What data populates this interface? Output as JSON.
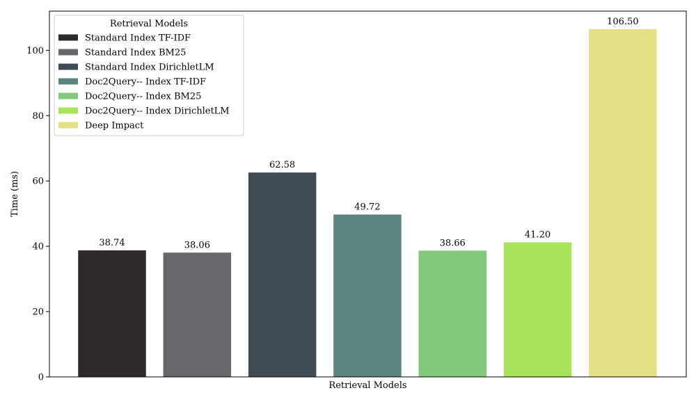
{
  "chart_data": {
    "type": "bar",
    "title": "",
    "xlabel": "Retrieval Models",
    "ylabel": "Time (ms)",
    "ylim": [
      0,
      112
    ],
    "yticks": [
      0,
      20,
      40,
      60,
      80,
      100
    ],
    "grid": false,
    "legend": {
      "title": "Retrieval Models",
      "placement": "top-left"
    },
    "series": [
      {
        "name": "Standard Index TF-IDF",
        "value": 38.74,
        "label": "38.74",
        "color": "#2e2a2b"
      },
      {
        "name": "Standard Index BM25",
        "value": 38.06,
        "label": "38.06",
        "color": "#67686b"
      },
      {
        "name": "Standard Index DirichletLM",
        "value": 62.58,
        "label": "62.58",
        "color": "#414b55"
      },
      {
        "name": "Doc2Query-- Index TF-IDF",
        "value": 49.72,
        "label": "49.72",
        "color": "#5a857e"
      },
      {
        "name": "Doc2Query-- Index BM25",
        "value": 38.66,
        "label": "38.66",
        "color": "#82c97c"
      },
      {
        "name": "Doc2Query-- Index DirichletLM",
        "value": 41.2,
        "label": "41.20",
        "color": "#a8e45a"
      },
      {
        "name": "Deep Impact",
        "value": 106.5,
        "label": "106.50",
        "color": "#e4e086"
      }
    ]
  }
}
